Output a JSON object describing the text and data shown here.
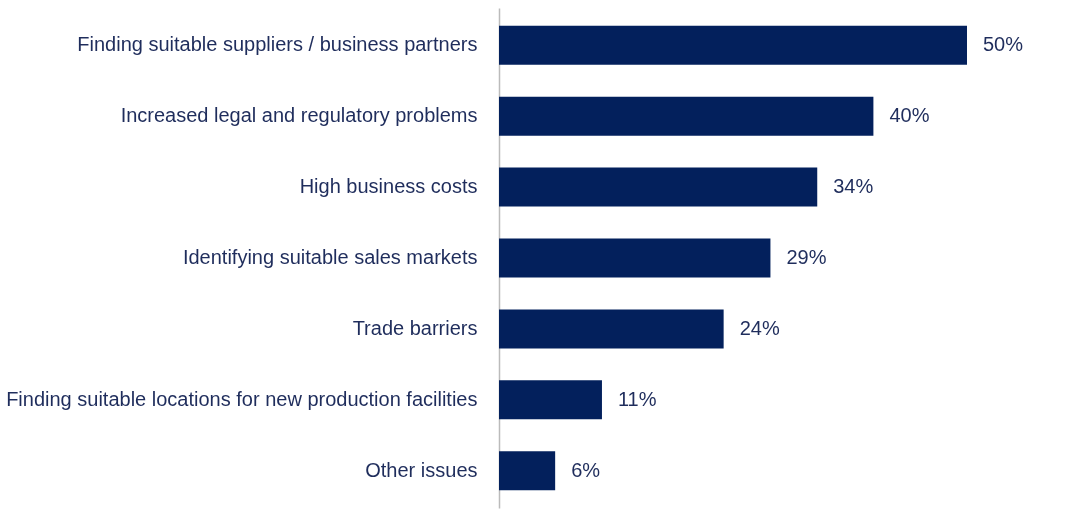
{
  "chart_data": {
    "type": "bar",
    "orientation": "horizontal",
    "categories": [
      "Finding suitable suppliers / business partners",
      "Increased legal and regulatory problems",
      "High business costs",
      "Identifying suitable sales markets",
      "Trade barriers",
      "Finding suitable locations for new production facilities",
      "Other issues"
    ],
    "values": [
      50,
      40,
      34,
      29,
      24,
      11,
      6
    ],
    "value_labels": [
      "50%",
      "40%",
      "34%",
      "29%",
      "24%",
      "11%",
      "6%"
    ],
    "color": "#03205c"
  }
}
